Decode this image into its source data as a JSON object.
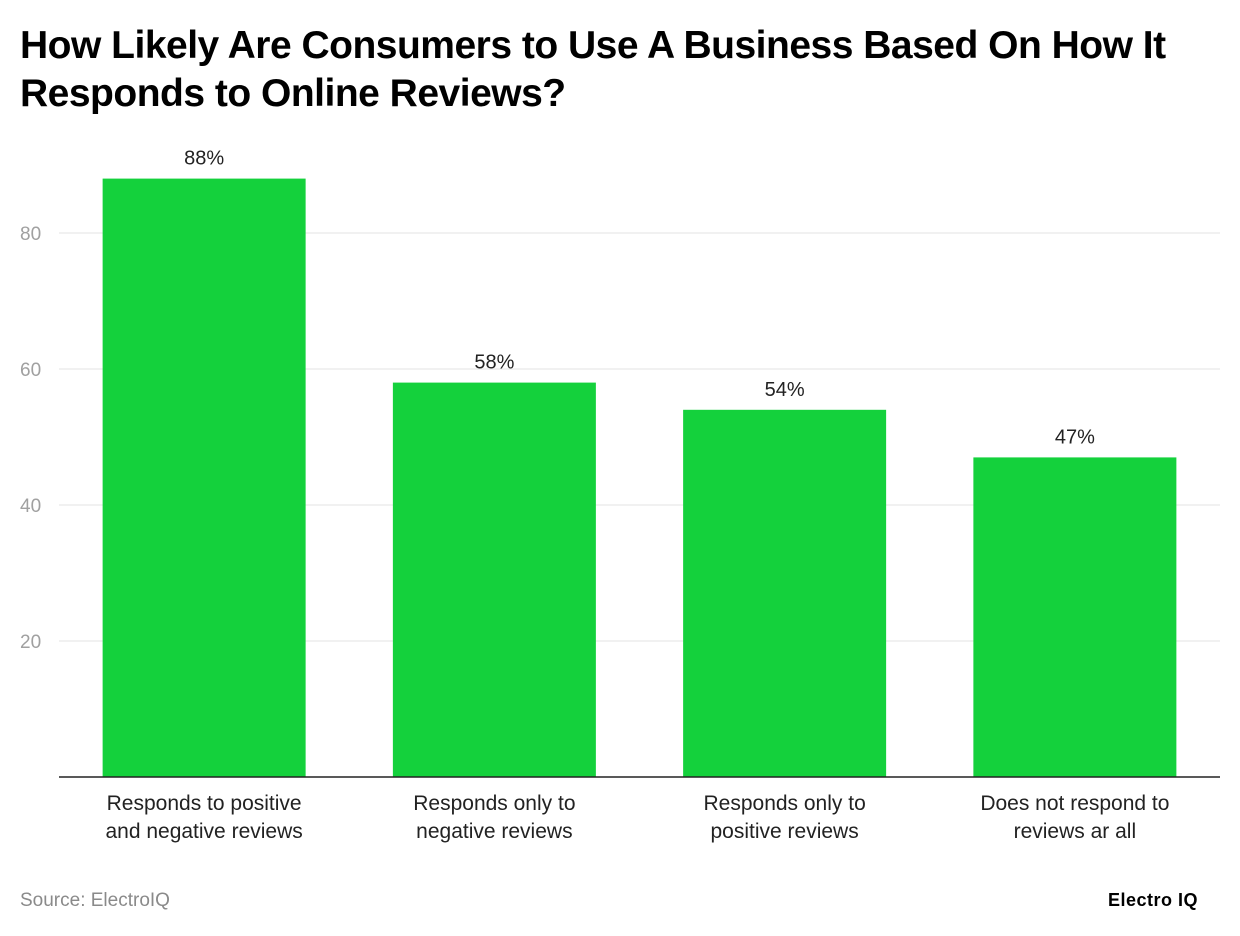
{
  "chart_data": {
    "type": "bar",
    "title": "How Likely Are Consumers to Use A Business Based On How It Responds to Online Reviews?",
    "categories": [
      [
        "Responds to positive",
        "and negative reviews"
      ],
      [
        "Responds only to",
        "negative reviews"
      ],
      [
        "Responds only to",
        "positive reviews"
      ],
      [
        "Does not respond to",
        "reviews ar all"
      ]
    ],
    "values": [
      88,
      58,
      54,
      47
    ],
    "data_labels": [
      "88%",
      "58%",
      "54%",
      "47%"
    ],
    "yticks": [
      20,
      40,
      60,
      80
    ],
    "ylim": [
      0,
      90
    ],
    "grid": true,
    "bar_color": "#14d13c",
    "xlabel": "",
    "ylabel": ""
  },
  "footer": {
    "source": "Source: ElectroIQ",
    "logo": "Electro IQ"
  }
}
